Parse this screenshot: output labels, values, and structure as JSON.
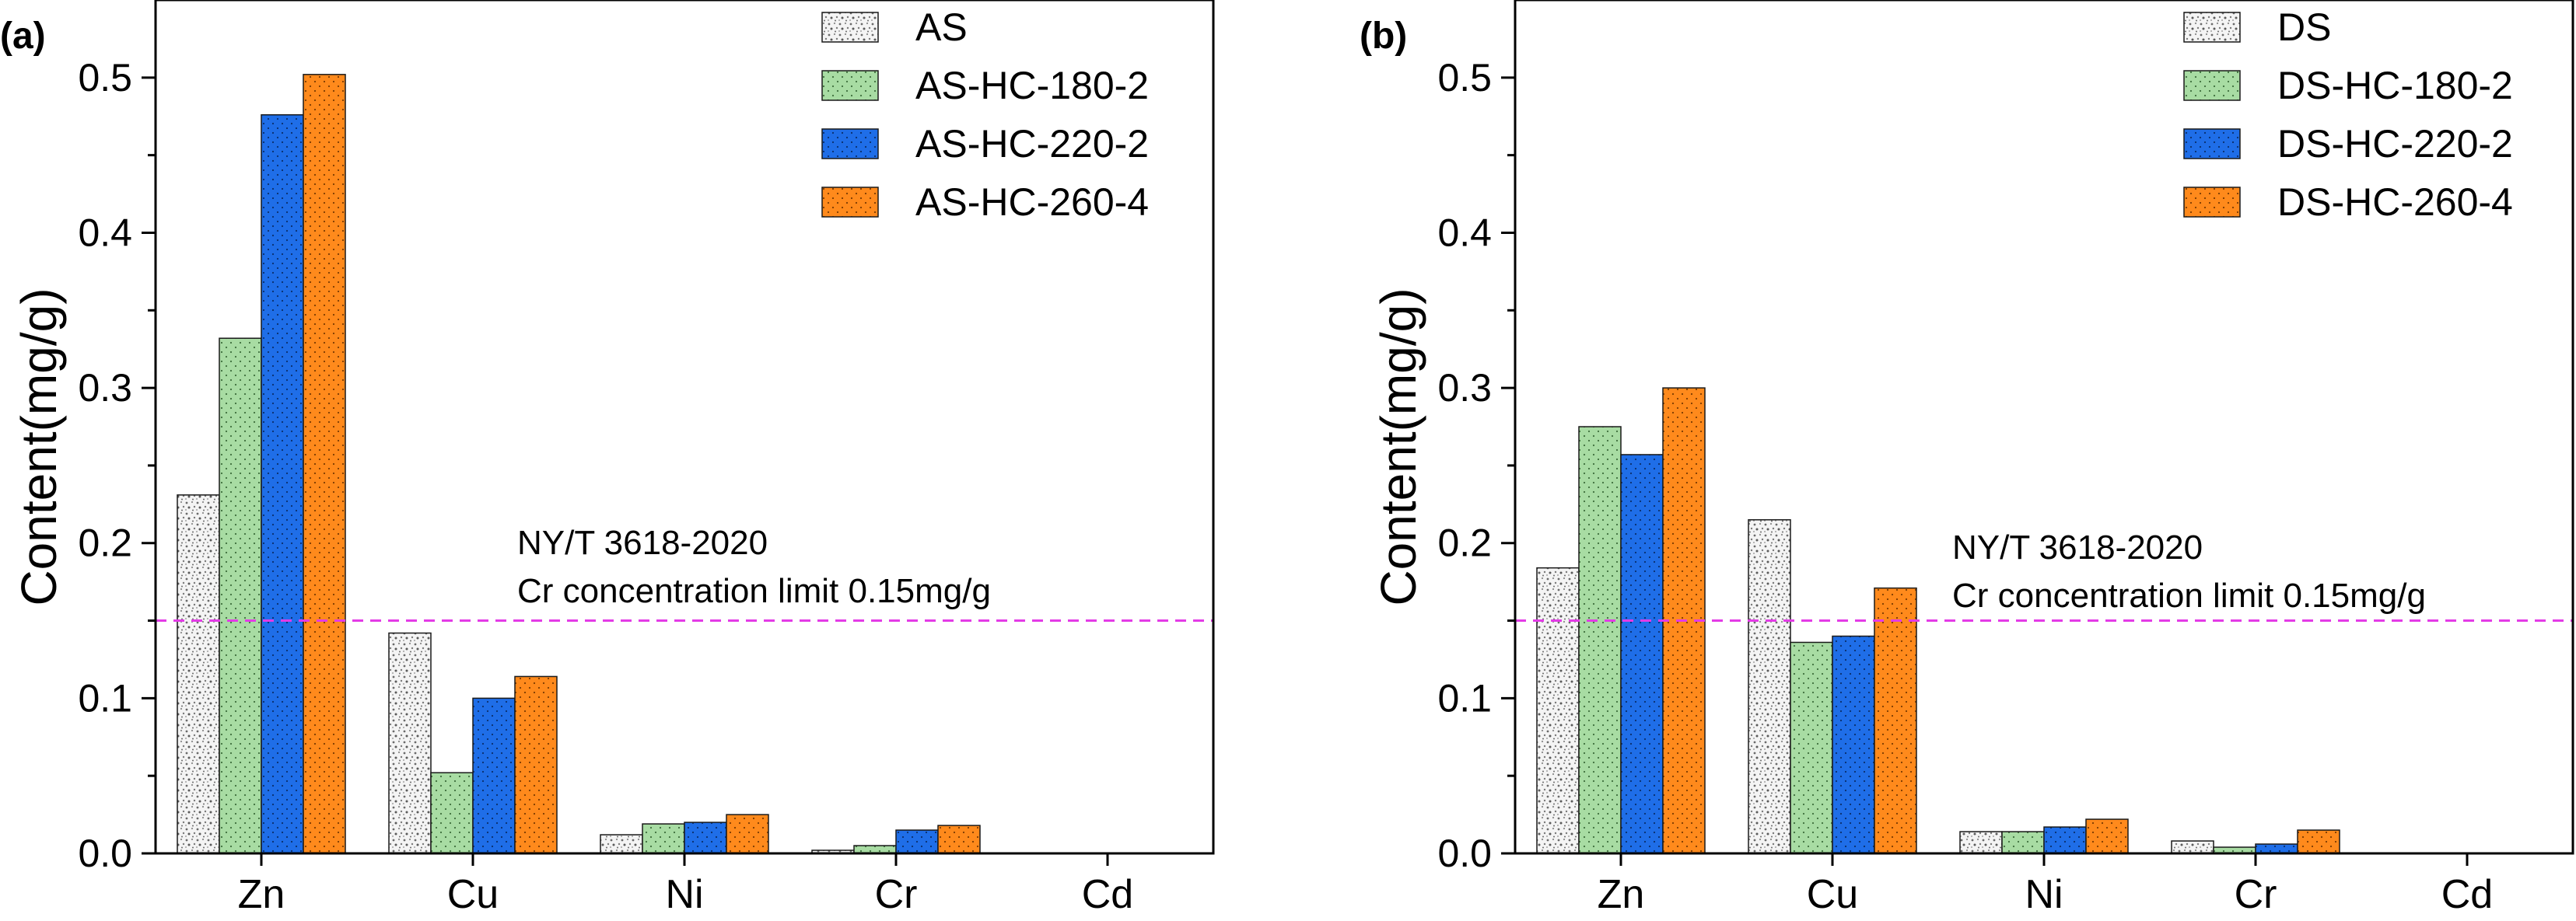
{
  "colors": {
    "raw": "#f2f2f2",
    "hc180": "#a8dca3",
    "hc220": "#1f6ee8",
    "hc260": "#ff8a1c",
    "limit_line": "#e33be6",
    "axis": "#000000"
  },
  "chart_data": [
    {
      "panel": "(a)",
      "type": "bar",
      "ylabel": "Content(mg/g)",
      "ylim": [
        0,
        0.55
      ],
      "yticks": [
        "0.0",
        "0.1",
        "0.2",
        "0.3",
        "0.4",
        "0.5"
      ],
      "categories": [
        "Zn",
        "Cu",
        "Ni",
        "Cr",
        "Cd"
      ],
      "series": [
        {
          "name": "AS",
          "color": "#f2f2f2",
          "pattern": "speckle",
          "values": [
            0.231,
            0.142,
            0.012,
            0.002,
            0.0
          ]
        },
        {
          "name": "AS-HC-180-2",
          "color": "#a8dca3",
          "pattern": "dots",
          "values": [
            0.332,
            0.052,
            0.019,
            0.005,
            0.0
          ]
        },
        {
          "name": "AS-HC-220-2",
          "color": "#1f6ee8",
          "pattern": "dots",
          "values": [
            0.476,
            0.1,
            0.02,
            0.015,
            0.0
          ]
        },
        {
          "name": "AS-HC-260-4",
          "color": "#ff8a1c",
          "pattern": "dots",
          "values": [
            0.502,
            0.114,
            0.025,
            0.018,
            0.0
          ]
        }
      ],
      "limit": {
        "value": 0.15,
        "line1": "NY/T 3618-2020",
        "line2": "Cr concentration limit 0.15mg/g"
      },
      "legend_position": "top-right",
      "grid": false
    },
    {
      "panel": "(b)",
      "type": "bar",
      "ylabel": "Content(mg/g)",
      "ylim": [
        0,
        0.55
      ],
      "yticks": [
        "0.0",
        "0.1",
        "0.2",
        "0.3",
        "0.4",
        "0.5"
      ],
      "categories": [
        "Zn",
        "Cu",
        "Ni",
        "Cr",
        "Cd"
      ],
      "series": [
        {
          "name": "DS",
          "color": "#f2f2f2",
          "pattern": "speckle",
          "values": [
            0.184,
            0.215,
            0.014,
            0.008,
            0.0
          ]
        },
        {
          "name": "DS-HC-180-2",
          "color": "#a8dca3",
          "pattern": "dots",
          "values": [
            0.275,
            0.136,
            0.014,
            0.004,
            0.0
          ]
        },
        {
          "name": "DS-HC-220-2",
          "color": "#1f6ee8",
          "pattern": "dots",
          "values": [
            0.257,
            0.14,
            0.017,
            0.006,
            0.0
          ]
        },
        {
          "name": "DS-HC-260-4",
          "color": "#ff8a1c",
          "pattern": "dots",
          "values": [
            0.3,
            0.171,
            0.022,
            0.015,
            0.0
          ]
        }
      ],
      "limit": {
        "value": 0.15,
        "line1": "NY/T 3618-2020",
        "line2": "Cr concentration limit 0.15mg/g"
      },
      "legend_position": "top-right",
      "grid": false
    }
  ]
}
